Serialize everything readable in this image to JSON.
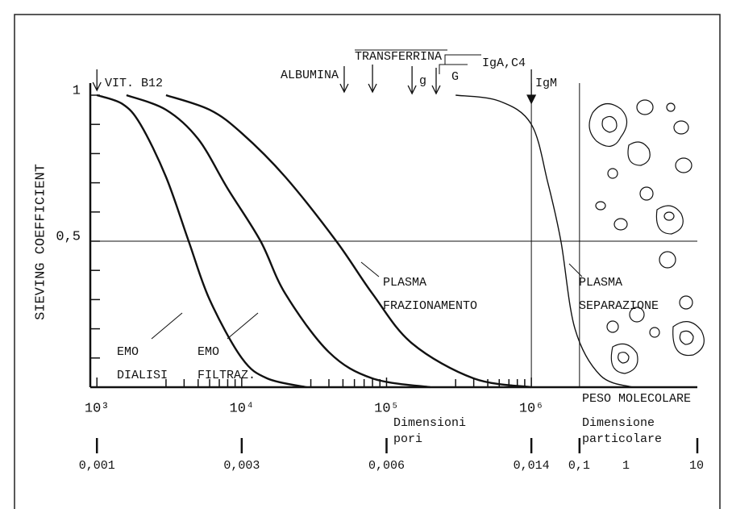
{
  "chart_data": {
    "type": "line",
    "y_label": "SIEVING COEFFICIENT",
    "x_label": "PESO MOLECOLARE",
    "log_x": true,
    "xlim": [
      900,
      14000000
    ],
    "ylim": [
      0,
      1
    ],
    "xticks": [
      {
        "value": 1000,
        "label": "10³"
      },
      {
        "value": 10000,
        "label": "10⁴"
      },
      {
        "value": 100000,
        "label": "10⁵"
      },
      {
        "value": 1000000,
        "label": "10⁶"
      }
    ],
    "xminorticks": [
      3000,
      4000,
      5000,
      6000,
      7000,
      8000,
      9000,
      30000,
      40000,
      50000,
      60000,
      70000,
      80000,
      90000,
      300000,
      400000,
      500000,
      600000,
      700000,
      800000,
      900000
    ],
    "yticks": [
      {
        "value": 0.5,
        "label": "0,5"
      },
      1
    ],
    "yminorticks": [
      0.1,
      0.2,
      0.3,
      0.4,
      0.6,
      0.7,
      0.8,
      0.9
    ],
    "reference_line": 0.5,
    "vlines": [
      1000000,
      2150000
    ],
    "series": [
      {
        "name": [
          "EMO",
          "DIALISI"
        ],
        "color": "#111111",
        "x": [
          1000,
          1500,
          2000,
          3000,
          4300,
          6000,
          10000,
          15000,
          28000
        ],
        "values": [
          1,
          0.97,
          0.9,
          0.72,
          0.5,
          0.3,
          0.1,
          0.03,
          0
        ]
      },
      {
        "name": [
          "EMO",
          "FILTRAZ."
        ],
        "color": "#111111",
        "x": [
          1600,
          3000,
          5000,
          8000,
          13500,
          20000,
          40000,
          80000,
          200000
        ],
        "values": [
          1,
          0.95,
          0.85,
          0.68,
          0.5,
          0.32,
          0.12,
          0.03,
          0
        ]
      },
      {
        "name": [
          "PLASMA",
          "FRAZIONAMENTO"
        ],
        "color": "#111111",
        "x": [
          3000,
          6000,
          10000,
          20000,
          45000,
          80000,
          150000,
          400000,
          1000000
        ],
        "values": [
          1,
          0.95,
          0.87,
          0.72,
          0.5,
          0.32,
          0.15,
          0.03,
          0
        ]
      },
      {
        "name": [
          "PLASMA",
          "SEPARAZIONE"
        ],
        "color": "#111111",
        "x": [
          300000,
          600000,
          1000000,
          1300000,
          1600000,
          2000000,
          3000000,
          5000000
        ],
        "values": [
          1,
          0.98,
          0.9,
          0.7,
          0.5,
          0.2,
          0.04,
          0
        ]
      }
    ],
    "annotations": [
      {
        "label": "VIT. B12",
        "x": 1000
      },
      {
        "label": "ALBUMINA",
        "x": 51000
      },
      {
        "label": "TRANSFERRINA",
        "x": 80000
      },
      {
        "label": "g",
        "x": 150000
      },
      {
        "label": "G",
        "x": 220000
      },
      {
        "label": "IgA,C4"
      },
      {
        "label": "IgM",
        "x": 1000000
      }
    ],
    "pore_scale": {
      "title": [
        "Dimensioni",
        "pori"
      ],
      "ticks": [
        {
          "value": 0.001,
          "label": "0,001"
        },
        {
          "value": 0.003,
          "label": "0,003"
        },
        {
          "value": 0.006,
          "label": "0,006"
        },
        {
          "value": 0.014,
          "label": "0,014"
        }
      ],
      "at_x": [
        1000,
        10000,
        100000,
        1000000
      ]
    },
    "particle_scale": {
      "title": [
        "Dimensione",
        "particolare"
      ],
      "ticks": [
        {
          "value": 0.1,
          "label": "0,1"
        },
        1,
        10
      ],
      "at_x": [
        2150000,
        4500000,
        14000000
      ]
    }
  }
}
